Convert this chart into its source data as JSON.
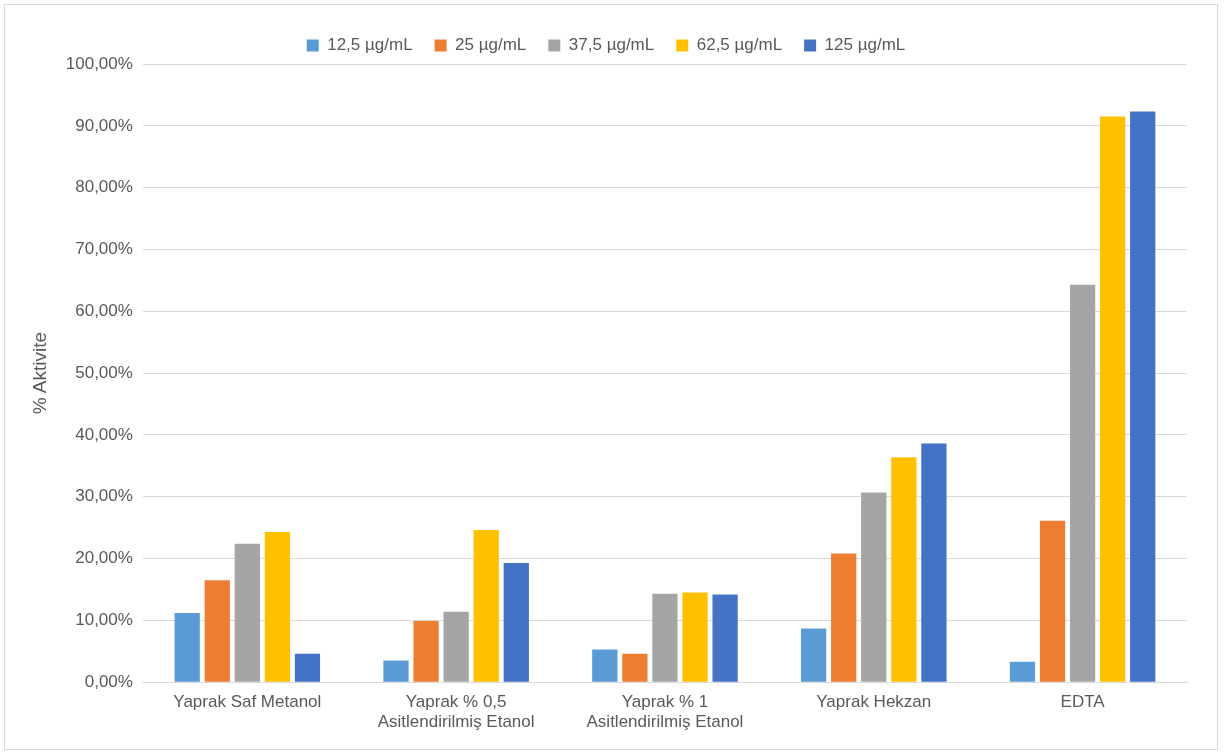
{
  "chart_data": {
    "type": "bar",
    "ylabel": "% Aktivite",
    "categories": [
      "Yaprak Saf Metanol",
      "Yaprak % 0,5 Asitlendirilmiş Etanol",
      "Yaprak % 1 Asitlendirilmiş Etanol",
      "Yaprak Hekzan",
      "EDTA"
    ],
    "series": [
      {
        "name": "12,5 µg/mL",
        "color": "#5b9bd5",
        "values": [
          11.2,
          3.5,
          5.3,
          8.7,
          3.3
        ]
      },
      {
        "name": "25 µg/mL",
        "color": "#ed7d31",
        "values": [
          16.5,
          9.9,
          4.6,
          20.8,
          26.1
        ]
      },
      {
        "name": "37,5 µg/mL",
        "color": "#a5a5a5",
        "values": [
          22.4,
          11.4,
          14.3,
          30.7,
          64.3
        ]
      },
      {
        "name": "62,5 µg/mL",
        "color": "#ffc000",
        "values": [
          24.3,
          24.6,
          14.5,
          36.4,
          91.5
        ]
      },
      {
        "name": "125 µg/mL",
        "color": "#4472c4",
        "values": [
          4.6,
          19.3,
          14.2,
          38.6,
          92.3
        ]
      }
    ],
    "ylim": [
      0,
      100
    ],
    "yticks": [
      {
        "value": 0,
        "label": "0,00%"
      },
      {
        "value": 10,
        "label": "10,00%"
      },
      {
        "value": 20,
        "label": "20,00%"
      },
      {
        "value": 30,
        "label": "30,00%"
      },
      {
        "value": 40,
        "label": "40,00%"
      },
      {
        "value": 50,
        "label": "50,00%"
      },
      {
        "value": 60,
        "label": "60,00%"
      },
      {
        "value": 70,
        "label": "70,00%"
      },
      {
        "value": 80,
        "label": "80,00%"
      },
      {
        "value": 90,
        "label": "90,00%"
      },
      {
        "value": 100,
        "label": "100,00%"
      }
    ],
    "grid": "y",
    "legend": "top"
  }
}
